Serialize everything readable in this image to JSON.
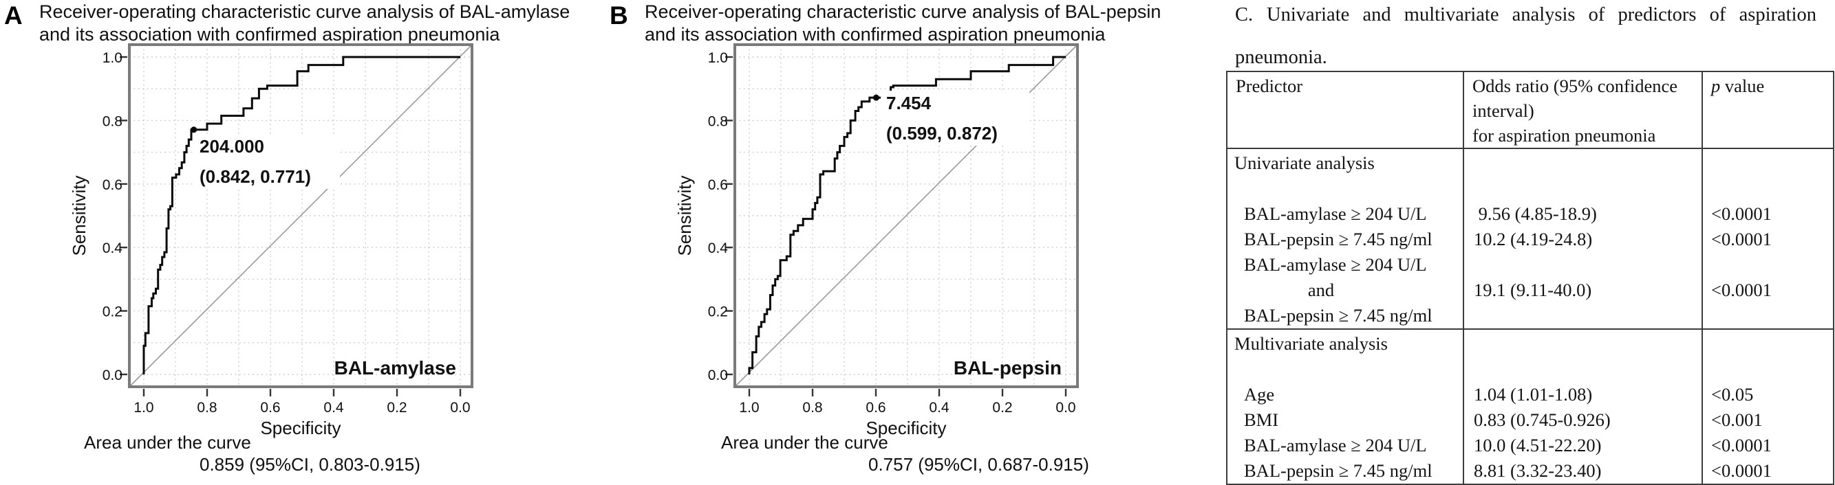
{
  "chart_data": [
    {
      "type": "line",
      "subtype": "roc-step-curve",
      "panel_label": "A",
      "title_line1": "Receiver-operating characteristic curve analysis of BAL-amylase",
      "title_line2": "and its association with confirmed aspiration pneumonia",
      "xlabel": "Specificity",
      "ylabel": "Sensitivity",
      "x_axis": {
        "direction": "reversed",
        "range": [
          1.0,
          0.0
        ],
        "tick_values": [
          1.0,
          0.8,
          0.6,
          0.4,
          0.2,
          0.0
        ],
        "tick_labels": [
          "1.0",
          "0.8",
          "0.6",
          "0.4",
          "0.2",
          "0.0"
        ]
      },
      "y_axis": {
        "range": [
          0.0,
          1.0
        ],
        "tick_values": [
          0.0,
          0.2,
          0.4,
          0.6,
          0.8,
          1.0
        ],
        "tick_labels": [
          "0.0",
          "0.2",
          "0.4",
          "0.6",
          "0.8",
          "1.0"
        ]
      },
      "grid": {
        "show": true,
        "interval": 0.1,
        "style": "dotted"
      },
      "diagonal_reference_line": true,
      "series_label": "BAL-amylase",
      "series": [
        {
          "name": "BAL-amylase",
          "points": [
            [
              1,
              0
            ],
            [
              1,
              0.09
            ],
            [
              0.995,
              0.09
            ],
            [
              0.995,
              0.13
            ],
            [
              0.985,
              0.13
            ],
            [
              0.985,
              0.215
            ],
            [
              0.975,
              0.215
            ],
            [
              0.975,
              0.24
            ],
            [
              0.97,
              0.24
            ],
            [
              0.97,
              0.255
            ],
            [
              0.962,
              0.255
            ],
            [
              0.962,
              0.27
            ],
            [
              0.955,
              0.27
            ],
            [
              0.955,
              0.33
            ],
            [
              0.948,
              0.33
            ],
            [
              0.948,
              0.345
            ],
            [
              0.942,
              0.345
            ],
            [
              0.942,
              0.37
            ],
            [
              0.935,
              0.37
            ],
            [
              0.935,
              0.385
            ],
            [
              0.928,
              0.385
            ],
            [
              0.928,
              0.46
            ],
            [
              0.922,
              0.46
            ],
            [
              0.922,
              0.52
            ],
            [
              0.916,
              0.52
            ],
            [
              0.916,
              0.53
            ],
            [
              0.91,
              0.53
            ],
            [
              0.91,
              0.62
            ],
            [
              0.898,
              0.62
            ],
            [
              0.898,
              0.63
            ],
            [
              0.888,
              0.63
            ],
            [
              0.888,
              0.65
            ],
            [
              0.88,
              0.65
            ],
            [
              0.88,
              0.668
            ],
            [
              0.872,
              0.668
            ],
            [
              0.872,
              0.7
            ],
            [
              0.865,
              0.7
            ],
            [
              0.865,
              0.72
            ],
            [
              0.858,
              0.72
            ],
            [
              0.858,
              0.74
            ],
            [
              0.85,
              0.74
            ],
            [
              0.85,
              0.771
            ],
            [
              0.842,
              0.771
            ],
            [
              0.8,
              0.771
            ],
            [
              0.8,
              0.79
            ],
            [
              0.755,
              0.79
            ],
            [
              0.755,
              0.815
            ],
            [
              0.685,
              0.815
            ],
            [
              0.685,
              0.838
            ],
            [
              0.658,
              0.838
            ],
            [
              0.658,
              0.87
            ],
            [
              0.636,
              0.87
            ],
            [
              0.636,
              0.9
            ],
            [
              0.61,
              0.9
            ],
            [
              0.61,
              0.91
            ],
            [
              0.515,
              0.91
            ],
            [
              0.515,
              0.955
            ],
            [
              0.48,
              0.955
            ],
            [
              0.48,
              0.975
            ],
            [
              0.37,
              0.975
            ],
            [
              0.37,
              1
            ],
            [
              0,
              1
            ]
          ]
        }
      ],
      "cutoff": {
        "value_label": "204.000",
        "coords_label": "(0.842, 0.771)",
        "specificity": 0.842,
        "sensitivity": 0.771
      },
      "auc_label": "Area under the curve",
      "auc_value": "0.859 (95%CI, 0.803-0.915)"
    },
    {
      "type": "line",
      "subtype": "roc-step-curve",
      "panel_label": "B",
      "title_line1": "Receiver-operating characteristic curve analysis of BAL-pepsin",
      "title_line2": "and its association with confirmed aspiration pneumonia",
      "xlabel": "Specificity",
      "ylabel": "Sensitivity",
      "x_axis": {
        "direction": "reversed",
        "range": [
          1.0,
          0.0
        ],
        "tick_values": [
          1.0,
          0.8,
          0.6,
          0.4,
          0.2,
          0.0
        ],
        "tick_labels": [
          "1.0",
          "0.8",
          "0.6",
          "0.4",
          "0.2",
          "0.0"
        ]
      },
      "y_axis": {
        "range": [
          0.0,
          1.0
        ],
        "tick_values": [
          0.0,
          0.2,
          0.4,
          0.6,
          0.8,
          1.0
        ],
        "tick_labels": [
          "0.0",
          "0.2",
          "0.4",
          "0.6",
          "0.8",
          "1.0"
        ]
      },
      "grid": {
        "show": true,
        "interval": 0.1,
        "style": "dotted"
      },
      "diagonal_reference_line": true,
      "series_label": "BAL-pepsin",
      "series": [
        {
          "name": "BAL-pepsin",
          "points": [
            [
              1,
              0
            ],
            [
              1,
              0.02
            ],
            [
              0.99,
              0.02
            ],
            [
              0.99,
              0.07
            ],
            [
              0.978,
              0.07
            ],
            [
              0.978,
              0.12
            ],
            [
              0.97,
              0.12
            ],
            [
              0.97,
              0.15
            ],
            [
              0.962,
              0.15
            ],
            [
              0.962,
              0.165
            ],
            [
              0.952,
              0.165
            ],
            [
              0.952,
              0.19
            ],
            [
              0.944,
              0.19
            ],
            [
              0.944,
              0.205
            ],
            [
              0.934,
              0.205
            ],
            [
              0.934,
              0.25
            ],
            [
              0.926,
              0.25
            ],
            [
              0.926,
              0.28
            ],
            [
              0.918,
              0.28
            ],
            [
              0.918,
              0.3
            ],
            [
              0.91,
              0.3
            ],
            [
              0.91,
              0.31
            ],
            [
              0.902,
              0.31
            ],
            [
              0.902,
              0.36
            ],
            [
              0.882,
              0.36
            ],
            [
              0.882,
              0.372
            ],
            [
              0.87,
              0.372
            ],
            [
              0.87,
              0.44
            ],
            [
              0.86,
              0.44
            ],
            [
              0.86,
              0.452
            ],
            [
              0.846,
              0.452
            ],
            [
              0.846,
              0.47
            ],
            [
              0.83,
              0.47
            ],
            [
              0.83,
              0.49
            ],
            [
              0.8,
              0.49
            ],
            [
              0.8,
              0.52
            ],
            [
              0.792,
              0.52
            ],
            [
              0.792,
              0.54
            ],
            [
              0.785,
              0.54
            ],
            [
              0.785,
              0.558
            ],
            [
              0.776,
              0.558
            ],
            [
              0.776,
              0.63
            ],
            [
              0.766,
              0.63
            ],
            [
              0.766,
              0.64
            ],
            [
              0.73,
              0.64
            ],
            [
              0.73,
              0.68
            ],
            [
              0.722,
              0.68
            ],
            [
              0.722,
              0.7
            ],
            [
              0.714,
              0.7
            ],
            [
              0.714,
              0.72
            ],
            [
              0.7,
              0.72
            ],
            [
              0.7,
              0.748
            ],
            [
              0.69,
              0.748
            ],
            [
              0.69,
              0.76
            ],
            [
              0.68,
              0.76
            ],
            [
              0.68,
              0.8
            ],
            [
              0.665,
              0.8
            ],
            [
              0.665,
              0.83
            ],
            [
              0.655,
              0.83
            ],
            [
              0.655,
              0.842
            ],
            [
              0.645,
              0.842
            ],
            [
              0.645,
              0.86
            ],
            [
              0.62,
              0.86
            ],
            [
              0.62,
              0.872
            ],
            [
              0.599,
              0.872
            ],
            [
              0.56,
              0.872
            ],
            [
              0.56,
              0.885
            ],
            [
              0.553,
              0.885
            ],
            [
              0.553,
              0.905
            ],
            [
              0.545,
              0.905
            ],
            [
              0.545,
              0.91
            ],
            [
              0.41,
              0.91
            ],
            [
              0.41,
              0.93
            ],
            [
              0.3,
              0.93
            ],
            [
              0.3,
              0.955
            ],
            [
              0.18,
              0.955
            ],
            [
              0.18,
              0.975
            ],
            [
              0.04,
              0.975
            ],
            [
              0.04,
              1
            ],
            [
              0,
              1
            ]
          ]
        }
      ],
      "cutoff": {
        "value_label": "7.454",
        "coords_label": "(0.599, 0.872)",
        "specificity": 0.599,
        "sensitivity": 0.872
      },
      "auc_label": "Area under the curve",
      "auc_value": "0.757 (95%CI, 0.687-0.915)"
    },
    {
      "type": "table",
      "panel_label": "C.",
      "title_line1": "Univariate and multivariate analysis of predictors of aspiration",
      "title_line2": "pneumonia.",
      "header": {
        "col1": "Predictor",
        "col2_line1": "Odds ratio (95% confidence interval)",
        "col2_line2": "for aspiration pneumonia",
        "col3_italic": "p",
        "col3_rest": " value"
      },
      "sections": [
        {
          "label": "Univariate analysis",
          "rows": [
            {
              "predictor": [
                "BAL-amylase ≥ 204 U/L"
              ],
              "or": " 9.56 (4.85-18.9)",
              "p": "<0.0001"
            },
            {
              "predictor": [
                "BAL-pepsin ≥ 7.45 ng/ml"
              ],
              "or": "10.2 (4.19-24.8)",
              "p": "<0.0001"
            },
            {
              "predictor": [
                "BAL-amylase ≥ 204 U/L",
                "and",
                "BAL-pepsin ≥ 7.45 ng/ml"
              ],
              "or": "19.1 (9.11-40.0)",
              "p": "<0.0001"
            }
          ]
        },
        {
          "label": "Multivariate analysis",
          "rows": [
            {
              "predictor": [
                "Age"
              ],
              "or": "1.04 (1.01-1.08)",
              "p": "<0.05"
            },
            {
              "predictor": [
                "BMI"
              ],
              "or": "0.83 (0.745-0.926)",
              "p": "<0.001"
            },
            {
              "predictor": [
                "BAL-amylase ≥ 204 U/L"
              ],
              "or": "10.0 (4.51-22.20)",
              "p": "<0.0001"
            },
            {
              "predictor": [
                "BAL-pepsin ≥ 7.45 ng/ml"
              ],
              "or": "8.81 (3.32-23.40)",
              "p": "<0.0001"
            }
          ]
        }
      ]
    }
  ],
  "colors": {
    "curve": "#0a0a0a",
    "diagonal": "#9a9a9a",
    "grid": "#c9c9c9",
    "frame": "#7a7a7a",
    "text": "#101010",
    "table_border": "#3c3c3c"
  }
}
